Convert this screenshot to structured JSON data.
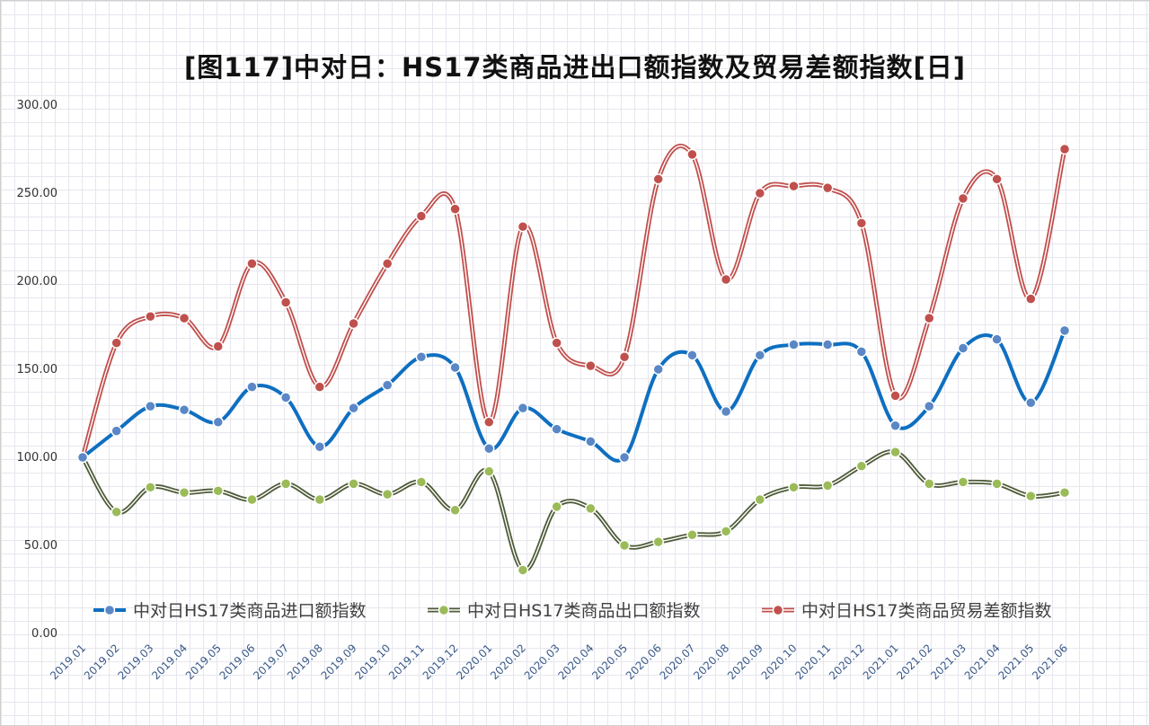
{
  "chart_data": {
    "type": "line",
    "title": "[图117]中对日：HS17类商品进出口额指数及贸易差额指数[日]",
    "xlabel": "",
    "ylabel": "",
    "ylim": [
      0,
      300
    ],
    "ytick_labels": [
      "0.00",
      "50.00",
      "100.00",
      "150.00",
      "200.00",
      "250.00",
      "300.00"
    ],
    "categories": [
      "2019.01",
      "2019.02",
      "2019.03",
      "2019.04",
      "2019.05",
      "2019.06",
      "2019.07",
      "2019.08",
      "2019.09",
      "2019.10",
      "2019.11",
      "2019.12",
      "2020.01",
      "2020.02",
      "2020.03",
      "2020.04",
      "2020.05",
      "2020.06",
      "2020.07",
      "2020.08",
      "2020.09",
      "2020.10",
      "2020.11",
      "2020.12",
      "2021.01",
      "2021.02",
      "2021.03",
      "2021.04",
      "2021.05",
      "2021.06"
    ],
    "series": [
      {
        "name": "中对日HS17类商品进口额指数",
        "color": "#0f6fc0",
        "marker_color": "#5b87c6",
        "values": [
          100,
          115,
          129,
          127,
          120,
          140,
          134,
          106,
          128,
          141,
          157,
          151,
          105,
          128,
          116,
          109,
          100,
          150,
          158,
          126,
          158,
          164,
          164,
          160,
          118,
          129,
          162,
          167,
          131,
          172
        ]
      },
      {
        "name": "中对日HS17类商品出口额指数",
        "color": "#4e5b38",
        "marker_color": "#9bbb59",
        "values": [
          100,
          69,
          83,
          80,
          81,
          76,
          85,
          76,
          85,
          79,
          86,
          70,
          92,
          36,
          72,
          71,
          50,
          52,
          56,
          58,
          76,
          83,
          84,
          95,
          103,
          85,
          86,
          85,
          78,
          80
        ]
      },
      {
        "name": "中对日HS17类商品贸易差额指数",
        "color": "#c0504d",
        "marker_color": "#c0504d",
        "values": [
          100,
          165,
          180,
          179,
          163,
          210,
          188,
          140,
          176,
          210,
          237,
          241,
          120,
          231,
          165,
          152,
          157,
          258,
          272,
          201,
          250,
          254,
          253,
          233,
          135,
          179,
          247,
          258,
          190,
          275
        ]
      }
    ],
    "grid": true,
    "legend_position": "bottom"
  }
}
